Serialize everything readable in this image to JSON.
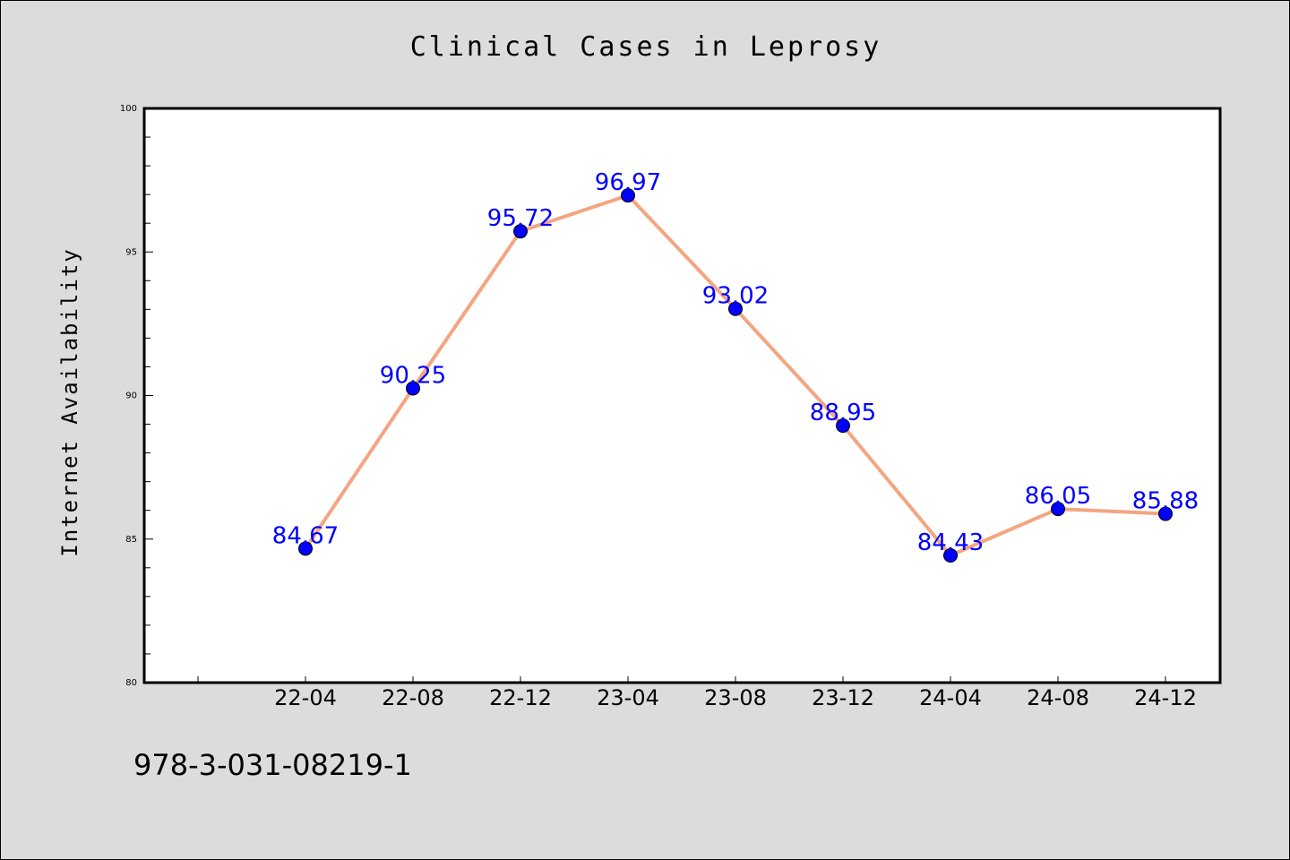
{
  "chart_data": {
    "type": "line",
    "title": "Clinical Cases in Leprosy",
    "xlabel": "",
    "ylabel": "Internet Availability",
    "categories": [
      "22-04",
      "22-08",
      "22-12",
      "23-04",
      "23-08",
      "23-12",
      "24-04",
      "24-08",
      "24-12"
    ],
    "values": [
      84.67,
      90.25,
      95.72,
      96.97,
      93.02,
      88.95,
      84.43,
      86.05,
      85.88
    ],
    "data_labels": [
      "84.67",
      "90.25",
      "95.72",
      "96.97",
      "93.02",
      "88.95",
      "84.43",
      "86.05",
      "85.88"
    ],
    "ylim": [
      80,
      100
    ],
    "y_ticks": [
      "80",
      "85",
      "90",
      "95",
      "100"
    ],
    "grid": false,
    "line_color": "#f4a582",
    "marker_color": "#0000ff",
    "label_color": "#0000ff"
  },
  "footer": {
    "code": "978-3-031-08219-1"
  }
}
